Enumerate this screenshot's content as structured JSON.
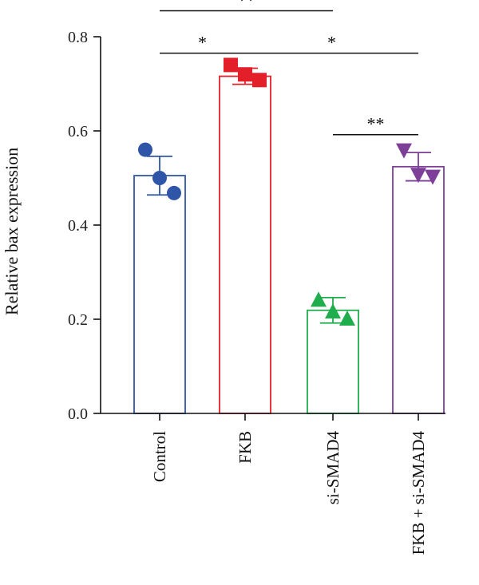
{
  "chart_data": {
    "type": "bar",
    "title": "",
    "xlabel": "",
    "ylabel": "Relative bax expression",
    "ylim": [
      0,
      0.8
    ],
    "yticks": [
      0.0,
      0.2,
      0.4,
      0.6,
      0.8
    ],
    "ytick_labels": [
      "0.0",
      "0.2",
      "0.4",
      "0.6",
      "0.8"
    ],
    "grid": false,
    "categories": [
      "Control",
      "FKB",
      "si-SMAD4",
      "FKB + si-SMAD4"
    ],
    "values": [
      0.505,
      0.716,
      0.219,
      0.524
    ],
    "error": [
      0.041,
      0.017,
      0.027,
      0.03
    ],
    "colors": [
      "#2f55a8",
      "#e3202a",
      "#1fad4d",
      "#7d3f98"
    ],
    "markers": [
      "circle",
      "square",
      "triangle-up",
      "triangle-down"
    ],
    "points": [
      [
        0.56,
        0.5,
        0.468
      ],
      [
        0.74,
        0.72,
        0.708
      ],
      [
        0.24,
        0.215,
        0.2
      ],
      [
        0.56,
        0.508,
        0.504
      ]
    ],
    "significance": [
      {
        "from": 0,
        "to": 2,
        "label": "**",
        "y": 0.855
      },
      {
        "from": 0,
        "to": 1,
        "label": "*",
        "y": 0.765
      },
      {
        "from": 1,
        "to": 3,
        "label": "*",
        "y": 0.765
      },
      {
        "from": 2,
        "to": 3,
        "label": "**",
        "y": 0.592
      }
    ]
  }
}
